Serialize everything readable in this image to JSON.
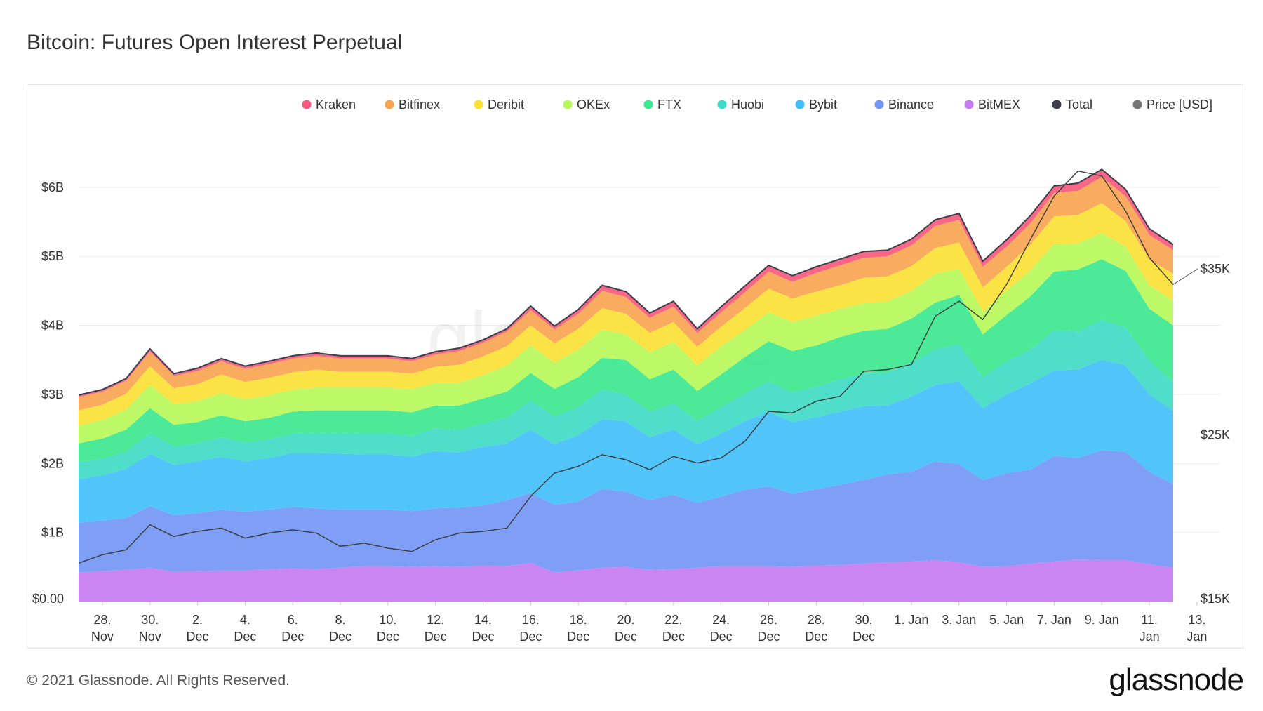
{
  "page": {
    "title": "Bitcoin: Futures Open Interest Perpetual",
    "copyright": "© 2021 Glassnode. All Rights Reserved.",
    "brand": "glassnode",
    "watermark": "glassnode"
  },
  "chart_data": {
    "type": "area",
    "title": "Bitcoin: Futures Open Interest Perpetual",
    "stacked": true,
    "legend_position": "top-right",
    "grid": true,
    "left_axis": {
      "ticks": [
        "$0.00",
        "$1B",
        "$2B",
        "$3B",
        "$4B",
        "$5B",
        "$6B"
      ],
      "ylim": [
        0,
        7.3
      ],
      "unit": "USD billions"
    },
    "right_axis": {
      "ticks": [
        "$15K",
        "$25K",
        "$35K"
      ],
      "tick_values": [
        15000,
        25000,
        35000
      ],
      "ylim": [
        15000,
        45200
      ]
    },
    "x_tick_labels": [
      [
        "28.",
        "Nov"
      ],
      [
        "30.",
        "Nov"
      ],
      [
        "2.",
        "Dec"
      ],
      [
        "4.",
        "Dec"
      ],
      [
        "6.",
        "Dec"
      ],
      [
        "8.",
        "Dec"
      ],
      [
        "10.",
        "Dec"
      ],
      [
        "12.",
        "Dec"
      ],
      [
        "14.",
        "Dec"
      ],
      [
        "16.",
        "Dec"
      ],
      [
        "18.",
        "Dec"
      ],
      [
        "20.",
        "Dec"
      ],
      [
        "22.",
        "Dec"
      ],
      [
        "24.",
        "Dec"
      ],
      [
        "26.",
        "Dec"
      ],
      [
        "28.",
        "Dec"
      ],
      [
        "30.",
        "Dec"
      ],
      [
        "1. Jan",
        ""
      ],
      [
        "3. Jan",
        ""
      ],
      [
        "5. Jan",
        ""
      ],
      [
        "7. Jan",
        ""
      ],
      [
        "9. Jan",
        ""
      ],
      [
        "11.",
        "Jan"
      ],
      [
        "13.",
        "Jan"
      ]
    ],
    "x": [
      "2020-11-27",
      "2020-11-28",
      "2020-11-29",
      "2020-11-30",
      "2020-12-01",
      "2020-12-02",
      "2020-12-03",
      "2020-12-04",
      "2020-12-05",
      "2020-12-06",
      "2020-12-07",
      "2020-12-08",
      "2020-12-09",
      "2020-12-10",
      "2020-12-11",
      "2020-12-12",
      "2020-12-13",
      "2020-12-14",
      "2020-12-15",
      "2020-12-16",
      "2020-12-17",
      "2020-12-18",
      "2020-12-19",
      "2020-12-20",
      "2020-12-21",
      "2020-12-22",
      "2020-12-23",
      "2020-12-24",
      "2020-12-25",
      "2020-12-26",
      "2020-12-27",
      "2020-12-28",
      "2020-12-29",
      "2020-12-30",
      "2020-12-31",
      "2021-01-01",
      "2021-01-02",
      "2021-01-03",
      "2021-01-04",
      "2021-01-05",
      "2021-01-06",
      "2021-01-07",
      "2021-01-08",
      "2021-01-09",
      "2021-01-10",
      "2021-01-11",
      "2021-01-12"
    ],
    "series": [
      {
        "name": "BitMEX",
        "color": "#c57bf2",
        "values": [
          0.42,
          0.44,
          0.46,
          0.49,
          0.43,
          0.44,
          0.45,
          0.45,
          0.47,
          0.48,
          0.47,
          0.49,
          0.51,
          0.51,
          0.5,
          0.51,
          0.5,
          0.52,
          0.51,
          0.56,
          0.42,
          0.45,
          0.49,
          0.5,
          0.46,
          0.47,
          0.49,
          0.51,
          0.51,
          0.51,
          0.5,
          0.52,
          0.53,
          0.55,
          0.57,
          0.58,
          0.6,
          0.57,
          0.5,
          0.51,
          0.55,
          0.58,
          0.61,
          0.6,
          0.6,
          0.54,
          0.49
        ]
      },
      {
        "name": "Binance",
        "color": "#7497f5",
        "values": [
          0.72,
          0.73,
          0.75,
          0.89,
          0.82,
          0.84,
          0.88,
          0.85,
          0.86,
          0.89,
          0.88,
          0.84,
          0.82,
          0.82,
          0.81,
          0.84,
          0.86,
          0.87,
          0.96,
          1.01,
          0.98,
          1.0,
          1.14,
          1.09,
          1.01,
          1.08,
          0.94,
          1.01,
          1.11,
          1.16,
          1.06,
          1.11,
          1.16,
          1.21,
          1.27,
          1.3,
          1.43,
          1.42,
          1.26,
          1.35,
          1.36,
          1.53,
          1.47,
          1.59,
          1.57,
          1.34,
          1.21
        ]
      },
      {
        "name": "Bybit",
        "color": "#42bffa",
        "values": [
          0.63,
          0.66,
          0.71,
          0.76,
          0.73,
          0.75,
          0.77,
          0.73,
          0.75,
          0.78,
          0.8,
          0.81,
          0.8,
          0.8,
          0.79,
          0.83,
          0.8,
          0.85,
          0.82,
          0.92,
          0.88,
          0.96,
          1.01,
          1.02,
          0.91,
          0.94,
          0.85,
          0.91,
          0.99,
          1.08,
          1.04,
          1.04,
          1.06,
          1.07,
          1.0,
          1.09,
          1.11,
          1.2,
          1.04,
          1.14,
          1.25,
          1.24,
          1.28,
          1.31,
          1.25,
          1.12,
          1.06
        ]
      },
      {
        "name": "Huobi",
        "color": "#3fdbc6",
        "values": [
          0.25,
          0.24,
          0.25,
          0.3,
          0.27,
          0.26,
          0.28,
          0.27,
          0.27,
          0.28,
          0.29,
          0.29,
          0.31,
          0.31,
          0.3,
          0.33,
          0.33,
          0.34,
          0.38,
          0.42,
          0.4,
          0.41,
          0.43,
          0.39,
          0.37,
          0.38,
          0.34,
          0.38,
          0.41,
          0.44,
          0.43,
          0.44,
          0.47,
          0.47,
          0.48,
          0.49,
          0.51,
          0.54,
          0.45,
          0.48,
          0.49,
          0.58,
          0.55,
          0.58,
          0.55,
          0.49,
          0.42
        ]
      },
      {
        "name": "FTX",
        "color": "#3de88f",
        "values": [
          0.27,
          0.29,
          0.32,
          0.36,
          0.31,
          0.31,
          0.32,
          0.31,
          0.31,
          0.32,
          0.33,
          0.34,
          0.33,
          0.33,
          0.34,
          0.33,
          0.35,
          0.36,
          0.37,
          0.4,
          0.4,
          0.43,
          0.46,
          0.5,
          0.47,
          0.49,
          0.43,
          0.48,
          0.52,
          0.58,
          0.6,
          0.6,
          0.61,
          0.62,
          0.63,
          0.64,
          0.68,
          0.71,
          0.62,
          0.67,
          0.77,
          0.85,
          0.9,
          0.88,
          0.82,
          0.75,
          0.82
        ]
      },
      {
        "name": "OKEx",
        "color": "#b7f85a",
        "values": [
          0.26,
          0.27,
          0.29,
          0.34,
          0.3,
          0.3,
          0.32,
          0.32,
          0.33,
          0.32,
          0.33,
          0.33,
          0.33,
          0.33,
          0.34,
          0.33,
          0.33,
          0.34,
          0.38,
          0.4,
          0.38,
          0.4,
          0.41,
          0.37,
          0.39,
          0.4,
          0.37,
          0.41,
          0.39,
          0.42,
          0.42,
          0.43,
          0.41,
          0.4,
          0.4,
          0.4,
          0.42,
          0.38,
          0.33,
          0.35,
          0.38,
          0.4,
          0.38,
          0.38,
          0.35,
          0.34,
          0.36
        ]
      },
      {
        "name": "Deribit",
        "color": "#fce135",
        "values": [
          0.22,
          0.22,
          0.23,
          0.27,
          0.23,
          0.25,
          0.27,
          0.25,
          0.25,
          0.25,
          0.26,
          0.23,
          0.23,
          0.23,
          0.22,
          0.23,
          0.26,
          0.27,
          0.28,
          0.29,
          0.28,
          0.3,
          0.31,
          0.3,
          0.28,
          0.29,
          0.27,
          0.28,
          0.32,
          0.34,
          0.34,
          0.35,
          0.34,
          0.37,
          0.36,
          0.36,
          0.37,
          0.38,
          0.35,
          0.35,
          0.37,
          0.4,
          0.41,
          0.43,
          0.37,
          0.37,
          0.39
        ]
      },
      {
        "name": "Bitfinex",
        "color": "#f9a451",
        "values": [
          0.19,
          0.19,
          0.19,
          0.21,
          0.18,
          0.19,
          0.19,
          0.19,
          0.2,
          0.2,
          0.2,
          0.19,
          0.19,
          0.19,
          0.18,
          0.18,
          0.2,
          0.2,
          0.21,
          0.22,
          0.2,
          0.22,
          0.25,
          0.24,
          0.22,
          0.22,
          0.2,
          0.21,
          0.23,
          0.25,
          0.24,
          0.27,
          0.29,
          0.29,
          0.29,
          0.3,
          0.32,
          0.33,
          0.3,
          0.29,
          0.31,
          0.34,
          0.35,
          0.38,
          0.36,
          0.36,
          0.34
        ]
      },
      {
        "name": "Kraken",
        "color": "#f75a7e",
        "values": [
          0.03,
          0.03,
          0.03,
          0.04,
          0.03,
          0.04,
          0.04,
          0.04,
          0.04,
          0.04,
          0.04,
          0.04,
          0.04,
          0.04,
          0.04,
          0.04,
          0.04,
          0.04,
          0.04,
          0.06,
          0.05,
          0.06,
          0.08,
          0.08,
          0.07,
          0.08,
          0.06,
          0.08,
          0.09,
          0.09,
          0.09,
          0.09,
          0.09,
          0.09,
          0.09,
          0.09,
          0.09,
          0.09,
          0.08,
          0.1,
          0.11,
          0.1,
          0.11,
          0.11,
          0.1,
          0.09,
          0.08
        ]
      }
    ],
    "total": {
      "name": "Total",
      "color": "#3b3f4c"
    },
    "price": {
      "name": "Price [USD]",
      "color": "#555555",
      "axis": "right",
      "values": [
        17300,
        17800,
        18100,
        19600,
        18900,
        19200,
        19400,
        18800,
        19100,
        19300,
        19100,
        18300,
        18500,
        18200,
        18000,
        18700,
        19100,
        19200,
        19400,
        21300,
        22700,
        23100,
        23800,
        23500,
        22900,
        23700,
        23300,
        23600,
        24600,
        26400,
        26300,
        27000,
        27300,
        28800,
        28900,
        29200,
        32100,
        33000,
        31900,
        34000,
        36700,
        39300,
        40800,
        40500,
        38400,
        35600,
        34000
      ]
    },
    "legend": [
      "Kraken",
      "Bitfinex",
      "Deribit",
      "OKEx",
      "FTX",
      "Huobi",
      "Bybit",
      "Binance",
      "BitMEX",
      "Total",
      "Price [USD]"
    ],
    "end_label": "$35K"
  }
}
